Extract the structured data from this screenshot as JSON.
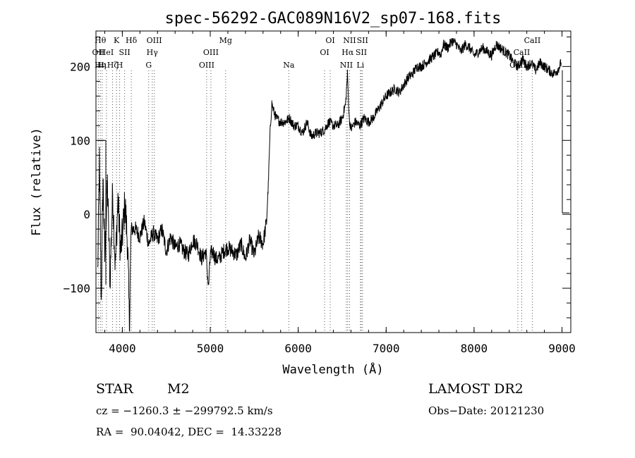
{
  "chart_data": {
    "type": "line",
    "title": "spec-56292-GAC089N16V2_sp07-168.fits",
    "xlabel": "Wavelength (Å)",
    "ylabel": "Flux (relative)",
    "xlim": [
      3700,
      9100
    ],
    "ylim": [
      -160,
      248
    ],
    "xticks": [
      {
        "value": 4000,
        "label": "4000"
      },
      {
        "value": 5000,
        "label": "5000"
      },
      {
        "value": 6000,
        "label": "6000"
      },
      {
        "value": 7000,
        "label": "7000"
      },
      {
        "value": 8000,
        "label": "8000"
      },
      {
        "value": 9000,
        "label": "9000"
      }
    ],
    "yticks": [
      {
        "value": -100,
        "label": "−100"
      },
      {
        "value": 0,
        "label": "0"
      },
      {
        "value": 100,
        "label": "100"
      },
      {
        "value": 200,
        "label": "200"
      }
    ],
    "series": [
      {
        "x": [
          3720,
          3740,
          3760,
          3780,
          3800,
          3830,
          3860,
          3890,
          3920,
          3950,
          3980,
          4000,
          4030,
          4060,
          4080,
          4100,
          4150,
          4200,
          4250,
          4300,
          4350,
          4400,
          4450,
          4500,
          4550,
          4600,
          4650,
          4700,
          4750,
          4800,
          4850,
          4900,
          4950,
          4980,
          5000,
          5030,
          5060,
          5100,
          5150,
          5200,
          5250,
          5300,
          5350,
          5400,
          5450,
          5500,
          5550,
          5600,
          5640,
          5660,
          5680,
          5700,
          5720,
          5750,
          5800,
          5850,
          5900,
          5950,
          6000,
          6050,
          6100,
          6150,
          6200,
          6250,
          6300,
          6350,
          6400,
          6450,
          6500,
          6520,
          6540,
          6560,
          6580,
          6600,
          6650,
          6700,
          6750,
          6800,
          6850,
          6900,
          6950,
          7000,
          7050,
          7100,
          7150,
          7200,
          7250,
          7300,
          7350,
          7400,
          7450,
          7500,
          7550,
          7600,
          7620,
          7650,
          7700,
          7750,
          7800,
          7850,
          7900,
          7950,
          8000,
          8050,
          8100,
          8150,
          8200,
          8250,
          8300,
          8350,
          8400,
          8450,
          8500,
          8550,
          8600,
          8650,
          8700,
          8750,
          8800,
          8850,
          8900,
          8950,
          8990
        ],
        "y": [
          -80,
          70,
          -120,
          50,
          -60,
          40,
          -90,
          30,
          -70,
          20,
          -50,
          -30,
          15,
          -40,
          -150,
          -20,
          -20,
          -30,
          -10,
          -40,
          -25,
          -35,
          -20,
          -50,
          -30,
          -45,
          -40,
          -50,
          -55,
          -35,
          -40,
          -60,
          -50,
          -100,
          -55,
          -50,
          -60,
          -60,
          -50,
          -45,
          -50,
          -55,
          -40,
          -60,
          -35,
          -55,
          -30,
          -40,
          -10,
          40,
          110,
          150,
          140,
          130,
          125,
          125,
          130,
          120,
          120,
          110,
          125,
          105,
          110,
          110,
          115,
          125,
          120,
          120,
          130,
          140,
          150,
          190,
          130,
          115,
          125,
          120,
          130,
          125,
          130,
          140,
          150,
          160,
          165,
          170,
          165,
          175,
          185,
          190,
          200,
          200,
          205,
          210,
          215,
          220,
          215,
          230,
          225,
          235,
          230,
          220,
          230,
          225,
          215,
          220,
          225,
          220,
          215,
          230,
          225,
          220,
          215,
          205,
          200,
          210,
          200,
          205,
          195,
          205,
          200,
          195,
          190,
          195,
          205
        ]
      }
    ],
    "lines": [
      {
        "wavelength": 3727,
        "labels": [
          {
            "text": "OII",
            "row": 1
          }
        ]
      },
      {
        "wavelength": 3750,
        "labels": [
          {
            "text": "Hθ",
            "row": 0
          },
          {
            "text": "Hη",
            "row": 2
          }
        ]
      },
      {
        "wavelength": 3771,
        "labels": [
          {
            "text": "Hι",
            "row": 2
          }
        ]
      },
      {
        "wavelength": 3820,
        "labels": [
          {
            "text": "HeI",
            "row": 1
          }
        ]
      },
      {
        "wavelength": 3889,
        "labels": [
          {
            "text": "Hζ",
            "row": 2
          }
        ]
      },
      {
        "wavelength": 3934,
        "labels": [
          {
            "text": "K",
            "row": 0
          }
        ]
      },
      {
        "wavelength": 3969,
        "labels": [
          {
            "text": "H",
            "row": 2
          }
        ]
      },
      {
        "wavelength": 4026,
        "labels": [
          {
            "text": "SII",
            "row": 1
          }
        ]
      },
      {
        "wavelength": 4102,
        "labels": [
          {
            "text": "Hδ",
            "row": 0
          }
        ]
      },
      {
        "wavelength": 4300,
        "labels": [
          {
            "text": "G",
            "row": 2
          }
        ]
      },
      {
        "wavelength": 4340,
        "labels": [
          {
            "text": "Hγ",
            "row": 1
          }
        ]
      },
      {
        "wavelength": 4363,
        "labels": [
          {
            "text": "OIII",
            "row": 0
          }
        ]
      },
      {
        "wavelength": 4959,
        "labels": [
          {
            "text": "OIII",
            "row": 2
          }
        ]
      },
      {
        "wavelength": 5007,
        "labels": [
          {
            "text": "OIII",
            "row": 1
          }
        ]
      },
      {
        "wavelength": 5175,
        "labels": [
          {
            "text": "Mg",
            "row": 0
          }
        ]
      },
      {
        "wavelength": 5893,
        "labels": [
          {
            "text": "Na",
            "row": 2
          }
        ]
      },
      {
        "wavelength": 6300,
        "labels": [
          {
            "text": "OI",
            "row": 1
          }
        ]
      },
      {
        "wavelength": 6364,
        "labels": [
          {
            "text": "OI",
            "row": 0
          }
        ]
      },
      {
        "wavelength": 6548,
        "labels": [
          {
            "text": "NII",
            "row": 2
          }
        ]
      },
      {
        "wavelength": 6563,
        "labels": [
          {
            "text": "Hα",
            "row": 1
          }
        ]
      },
      {
        "wavelength": 6584,
        "labels": [
          {
            "text": "NII",
            "row": 0
          }
        ]
      },
      {
        "wavelength": 6707,
        "labels": [
          {
            "text": "Li",
            "row": 2
          }
        ]
      },
      {
        "wavelength": 6717,
        "labels": [
          {
            "text": "SII",
            "row": 1
          }
        ]
      },
      {
        "wavelength": 6731,
        "labels": [
          {
            "text": "SII",
            "row": 0
          }
        ]
      },
      {
        "wavelength": 8498,
        "labels": [
          {
            "text": "CaII",
            "row": 2
          }
        ]
      },
      {
        "wavelength": 8542,
        "labels": [
          {
            "text": "CaII",
            "row": 1
          }
        ]
      },
      {
        "wavelength": 8662,
        "labels": [
          {
            "text": "CaII",
            "row": 0
          }
        ]
      }
    ]
  },
  "info": {
    "object_class": "STAR",
    "subclass": "M2",
    "survey": "LAMOST DR2",
    "cz_line": "cz = −1260.3 ± −299792.5 km/s",
    "obs_date_line": "Obs−Date: 20121230",
    "coord_line": "RA =  90.04042, DEC =  14.33228"
  }
}
